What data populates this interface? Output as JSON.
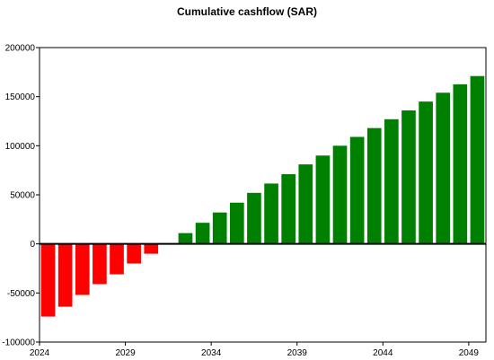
{
  "chart_data": {
    "type": "bar",
    "title": "Cumulative cashflow (SAR)",
    "xlabel": "",
    "ylabel": "",
    "x": [
      2024,
      2025,
      2026,
      2027,
      2028,
      2029,
      2030,
      2031,
      2032,
      2033,
      2034,
      2035,
      2036,
      2037,
      2038,
      2039,
      2040,
      2041,
      2042,
      2043,
      2044,
      2045,
      2046,
      2047,
      2048,
      2049
    ],
    "values": [
      -74000,
      -64000,
      -52000,
      -41000,
      -31000,
      -20000,
      -10000,
      500,
      11000,
      21500,
      32000,
      42000,
      52000,
      61500,
      71000,
      81000,
      90000,
      100000,
      109000,
      118000,
      127000,
      136000,
      145000,
      154000,
      162500,
      171000
    ],
    "xlim": [
      2024,
      2050
    ],
    "ylim": [
      -100000,
      200000
    ],
    "yticks": [
      -100000,
      -50000,
      0,
      50000,
      100000,
      150000,
      200000
    ],
    "ytick_labels": [
      "-100000",
      "-50000",
      "0",
      "50000",
      "100000",
      "150000",
      "200000"
    ],
    "xticks": [
      2024,
      2029,
      2034,
      2039,
      2044,
      2049
    ],
    "xtick_labels": [
      "2024",
      "2029",
      "2034",
      "2039",
      "2044",
      "2049"
    ],
    "grid": false,
    "legend": "none",
    "colors": {
      "negative": "#ff0000",
      "positive": "#008000",
      "zero_line": "#000000"
    }
  }
}
